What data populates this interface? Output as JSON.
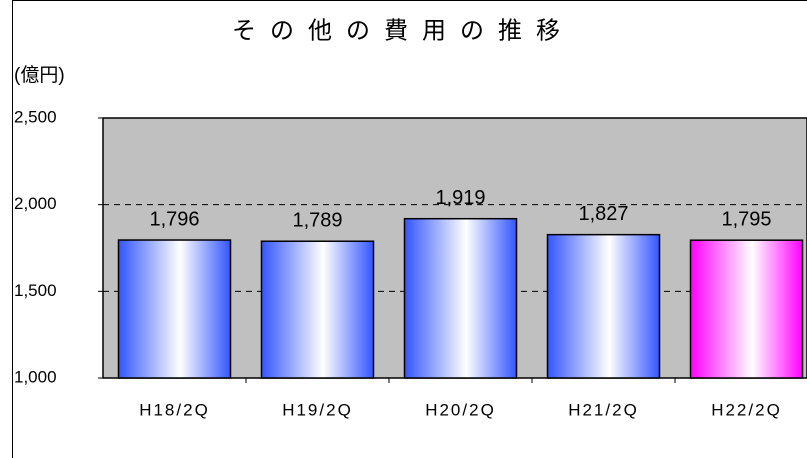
{
  "chart_data": {
    "type": "bar",
    "title": "その他の費用の推移",
    "y_label": "(億円)",
    "categories": [
      "H18/2Q",
      "H19/2Q",
      "H20/2Q",
      "H21/2Q",
      "H22/2Q"
    ],
    "values": [
      1796,
      1789,
      1919,
      1827,
      1795
    ],
    "value_labels": [
      "1,796",
      "1,789",
      "1,919",
      "1,827",
      "1,795"
    ],
    "colors": [
      "#3355ff",
      "#3355ff",
      "#3355ff",
      "#3355ff",
      "#ff00ff"
    ],
    "ylim": [
      1000,
      2500
    ],
    "yticks": [
      {
        "value": 1000,
        "label": "1,000"
      },
      {
        "value": 1500,
        "label": "1,500"
      },
      {
        "value": 2000,
        "label": "2,000"
      },
      {
        "value": 2500,
        "label": "2,500"
      }
    ],
    "grid": true
  }
}
